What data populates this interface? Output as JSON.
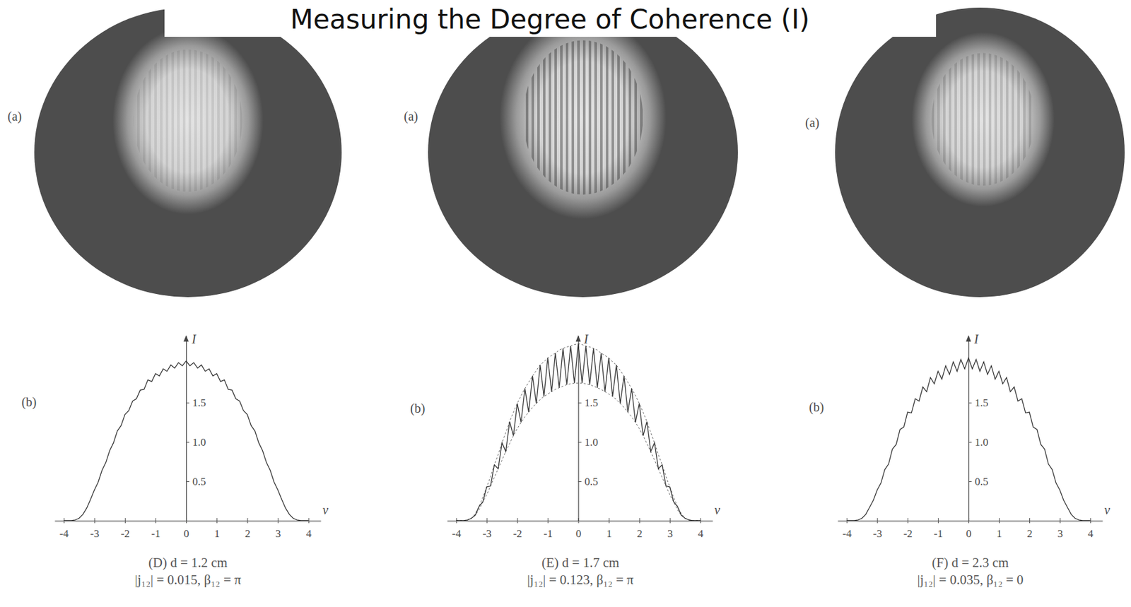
{
  "header": {
    "title": "Measuring the Degree of Coherence (I)"
  },
  "chart_data": [
    {
      "type": "line",
      "title": "(D) d = 1.2 cm",
      "subtitle": "|j₁₂| = 0.015, β₁₂ = π",
      "annotations": [
        "(a)",
        "(b)"
      ],
      "x_label": "v",
      "y_label": "I",
      "x": [
        -4,
        -3.875,
        -3.75,
        -3.625,
        -3.5,
        -3.375,
        -3.25,
        -3.125,
        -3,
        -2.875,
        -2.75,
        -2.625,
        -2.5,
        -2.375,
        -2.25,
        -2.125,
        -2,
        -1.875,
        -1.75,
        -1.625,
        -1.5,
        -1.375,
        -1.25,
        -1.125,
        -1,
        -0.875,
        -0.75,
        -0.625,
        -0.5,
        -0.375,
        -0.25,
        -0.125,
        0,
        0.125,
        0.25,
        0.375,
        0.5,
        0.625,
        0.75,
        0.875,
        1,
        1.125,
        1.25,
        1.375,
        1.5,
        1.625,
        1.75,
        1.875,
        2,
        2.125,
        2.25,
        2.375,
        2.5,
        2.625,
        2.75,
        2.875,
        3,
        3.125,
        3.25,
        3.375,
        3.5,
        3.625,
        3.75,
        3.875,
        4
      ],
      "series": [
        {
          "color": "#333333",
          "line_style": "solid",
          "values": [
            0,
            0,
            0,
            0.01,
            0.03,
            0.08,
            0.16,
            0.27,
            0.39,
            0.49,
            0.64,
            0.74,
            0.89,
            0.99,
            1.14,
            1.21,
            1.35,
            1.4,
            1.52,
            1.55,
            1.66,
            1.67,
            1.79,
            1.77,
            1.87,
            1.84,
            1.93,
            1.9,
            1.98,
            1.94,
            2.01,
            1.97,
            2.03,
            1.97,
            2.01,
            1.94,
            1.98,
            1.9,
            1.93,
            1.84,
            1.87,
            1.77,
            1.79,
            1.67,
            1.66,
            1.55,
            1.52,
            1.4,
            1.35,
            1.21,
            1.14,
            0.99,
            0.89,
            0.74,
            0.64,
            0.49,
            0.39,
            0.27,
            0.16,
            0.08,
            0.03,
            0.01,
            0,
            0,
            0
          ]
        }
      ],
      "xlim": [
        -4.3,
        4.4
      ],
      "xticks": [
        -4,
        -3,
        -2,
        -1,
        0,
        1,
        2,
        3,
        4
      ],
      "ylim": [
        0,
        2.35
      ],
      "yticks": [
        0.5,
        {
          "value": 1,
          "label": "1.0"
        },
        1.5
      ]
    },
    {
      "type": "line",
      "title": "(E) d = 1.7 cm",
      "subtitle": "|j₁₂| = 0.123, β₁₂ = π",
      "annotations": [
        "(a)",
        "(b)"
      ],
      "x_label": "v",
      "y_label": "I",
      "x": [
        -4,
        -3.875,
        -3.75,
        -3.625,
        -3.5,
        -3.375,
        -3.25,
        -3.125,
        -3,
        -2.875,
        -2.75,
        -2.625,
        -2.5,
        -2.375,
        -2.25,
        -2.125,
        -2,
        -1.875,
        -1.75,
        -1.625,
        -1.5,
        -1.375,
        -1.25,
        -1.125,
        -1,
        -0.875,
        -0.75,
        -0.625,
        -0.5,
        -0.375,
        -0.25,
        -0.125,
        0,
        0.125,
        0.25,
        0.375,
        0.5,
        0.625,
        0.75,
        0.875,
        1,
        1.125,
        1.25,
        1.375,
        1.5,
        1.625,
        1.75,
        1.875,
        2,
        2.125,
        2.25,
        2.375,
        2.5,
        2.625,
        2.75,
        2.875,
        3,
        3.125,
        3.25,
        3.375,
        3.5,
        3.625,
        3.75,
        3.875,
        4
      ],
      "series": [
        {
          "color": "#666666",
          "line_style": "dashed",
          "values": [
            0,
            0,
            0,
            0.01,
            0.03,
            0.09,
            0.18,
            0.3,
            0.43,
            0.56,
            0.71,
            0.84,
            0.99,
            1.12,
            1.26,
            1.38,
            1.49,
            1.59,
            1.68,
            1.76,
            1.84,
            1.91,
            1.98,
            2.02,
            2.07,
            2.1,
            2.13,
            2.17,
            2.19,
            2.21,
            2.22,
            2.24,
            2.25,
            2.24,
            2.22,
            2.21,
            2.19,
            2.17,
            2.13,
            2.1,
            2.07,
            2.02,
            1.98,
            1.91,
            1.84,
            1.76,
            1.68,
            1.59,
            1.49,
            1.38,
            1.26,
            1.12,
            0.99,
            0.84,
            0.71,
            0.56,
            0.43,
            0.3,
            0.18,
            0.09,
            0.03,
            0.01,
            0,
            0,
            0
          ]
        },
        {
          "color": "#666666",
          "line_style": "dashed",
          "values": [
            0,
            0,
            0,
            0.01,
            0.03,
            0.07,
            0.14,
            0.24,
            0.33,
            0.44,
            0.55,
            0.66,
            0.77,
            0.88,
            0.98,
            1.08,
            1.17,
            1.25,
            1.32,
            1.38,
            1.44,
            1.49,
            1.54,
            1.58,
            1.61,
            1.64,
            1.67,
            1.69,
            1.71,
            1.73,
            1.74,
            1.75,
            1.75,
            1.75,
            1.74,
            1.73,
            1.71,
            1.69,
            1.67,
            1.64,
            1.61,
            1.58,
            1.54,
            1.49,
            1.44,
            1.38,
            1.32,
            1.25,
            1.17,
            1.08,
            0.98,
            0.88,
            0.77,
            0.66,
            0.55,
            0.44,
            0.33,
            0.24,
            0.14,
            0.07,
            0.03,
            0.01,
            0,
            0,
            0
          ]
        },
        {
          "color": "#333333",
          "line_style": "solid",
          "values": [
            0,
            0,
            0,
            0.01,
            0.03,
            0.07,
            0.18,
            0.24,
            0.43,
            0.44,
            0.71,
            0.66,
            0.99,
            0.88,
            1.26,
            1.08,
            1.49,
            1.25,
            1.68,
            1.38,
            1.84,
            1.49,
            1.98,
            1.58,
            2.07,
            1.64,
            2.13,
            1.69,
            2.19,
            1.73,
            2.22,
            1.75,
            2.25,
            1.75,
            2.22,
            1.73,
            2.19,
            1.69,
            2.13,
            1.64,
            2.07,
            1.58,
            1.98,
            1.49,
            1.84,
            1.38,
            1.68,
            1.25,
            1.49,
            1.08,
            1.26,
            0.88,
            0.99,
            0.66,
            0.71,
            0.44,
            0.43,
            0.24,
            0.18,
            0.07,
            0.03,
            0.01,
            0,
            0,
            0
          ]
        }
      ],
      "xlim": [
        -4.3,
        4.4
      ],
      "xticks": [
        -4,
        -3,
        -2,
        -1,
        0,
        1,
        2,
        3,
        4
      ],
      "ylim": [
        0,
        2.35
      ],
      "yticks": [
        0.5,
        {
          "value": 1,
          "label": "1.0"
        },
        1.5
      ]
    },
    {
      "type": "line",
      "title": "(F) d = 2.3 cm",
      "subtitle": "|j₁₂| = 0.035, β₁₂ = 0",
      "annotations": [
        "(a)",
        "(b)"
      ],
      "x_label": "v",
      "y_label": "I",
      "x": [
        -4,
        -3.875,
        -3.75,
        -3.625,
        -3.5,
        -3.375,
        -3.25,
        -3.125,
        -3,
        -2.875,
        -2.75,
        -2.625,
        -2.5,
        -2.375,
        -2.25,
        -2.125,
        -2,
        -1.875,
        -1.75,
        -1.625,
        -1.5,
        -1.375,
        -1.25,
        -1.125,
        -1,
        -0.875,
        -0.75,
        -0.625,
        -0.5,
        -0.375,
        -0.25,
        -0.125,
        0,
        0.125,
        0.25,
        0.375,
        0.5,
        0.625,
        0.75,
        0.875,
        1,
        1.125,
        1.25,
        1.375,
        1.5,
        1.625,
        1.75,
        1.875,
        2,
        2.125,
        2.25,
        2.375,
        2.5,
        2.625,
        2.75,
        2.875,
        3,
        3.125,
        3.25,
        3.375,
        3.5,
        3.625,
        3.75,
        3.875,
        4
      ],
      "series": [
        {
          "color": "#333333",
          "line_style": "solid",
          "values": [
            0,
            0,
            0,
            0.01,
            0.03,
            0.08,
            0.17,
            0.26,
            0.39,
            0.48,
            0.65,
            0.72,
            0.91,
            0.97,
            1.16,
            1.19,
            1.38,
            1.37,
            1.55,
            1.52,
            1.7,
            1.64,
            1.82,
            1.74,
            1.9,
            1.8,
            1.97,
            1.86,
            2.02,
            1.9,
            2.05,
            1.93,
            2.07,
            1.93,
            2.05,
            1.9,
            2.02,
            1.86,
            1.97,
            1.8,
            1.9,
            1.74,
            1.82,
            1.64,
            1.7,
            1.52,
            1.55,
            1.37,
            1.38,
            1.19,
            1.16,
            0.97,
            0.91,
            0.72,
            0.65,
            0.48,
            0.39,
            0.26,
            0.17,
            0.08,
            0.03,
            0.01,
            0,
            0,
            0
          ]
        }
      ],
      "xlim": [
        -4.3,
        4.4
      ],
      "xticks": [
        -4,
        -3,
        -2,
        -1,
        0,
        1,
        2,
        3,
        4
      ],
      "ylim": [
        0,
        2.35
      ],
      "yticks": [
        0.5,
        {
          "value": 1,
          "label": "1.0"
        },
        1.5
      ]
    }
  ]
}
